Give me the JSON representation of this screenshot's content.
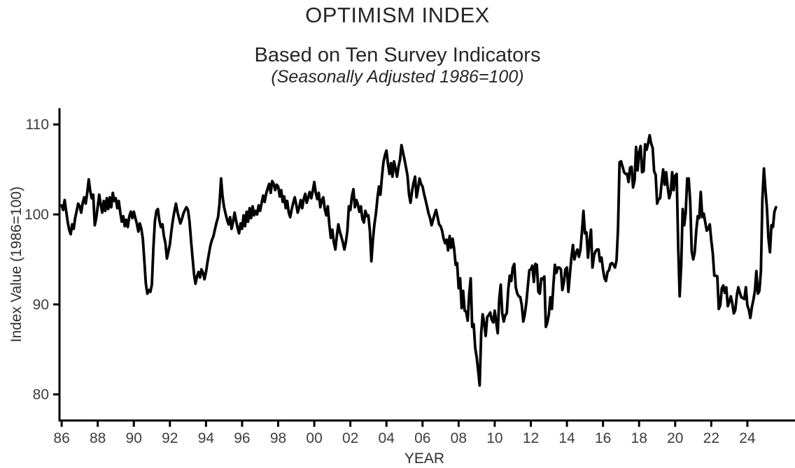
{
  "header": {
    "title": "OPTIMISM INDEX",
    "subtitle": "Based on Ten Survey Indicators",
    "subtitle2": "(Seasonally Adjusted 1986=100)"
  },
  "chart_data": {
    "type": "line",
    "title": "OPTIMISM INDEX",
    "subtitle": "Based on Ten Survey Indicators",
    "subtitle2": "(Seasonally Adjusted 1986=100)",
    "xlabel": "YEAR",
    "ylabel": "Index Value (1986=100)",
    "xlim": [
      1985.88,
      2026.64
    ],
    "ylim": [
      77.1,
      111.8
    ],
    "y_tick_values": [
      80,
      90,
      100,
      110
    ],
    "y_tick_labels": [
      "80",
      "90",
      "100",
      "110"
    ],
    "x_tick_values": [
      1986,
      1988,
      1990,
      1992,
      1994,
      1996,
      1998,
      2000,
      2002,
      2004,
      2006,
      2008,
      2010,
      2012,
      2014,
      2016,
      2018,
      2020,
      2022,
      2024
    ],
    "x_tick_labels": [
      "86",
      "88",
      "90",
      "92",
      "94",
      "96",
      "98",
      "00",
      "02",
      "04",
      "06",
      "08",
      "10",
      "12",
      "14",
      "16",
      "18",
      "20",
      "22",
      "24"
    ],
    "grid": false,
    "legend": "none",
    "line_color": "#000000",
    "axis_color": "#000000",
    "tick_label_color": "#3d3d3d",
    "line_width": 3.8,
    "x_start": 1986.0,
    "points_per_year": 12,
    "series": [
      {
        "name": "Optimism Index",
        "values": [
          101.0,
          100.5,
          101.6,
          100.4,
          99.2,
          98.3,
          97.8,
          98.9,
          98.4,
          99.6,
          100.4,
          101.2,
          100.9,
          100.2,
          101.3,
          101.9,
          101.2,
          102.4,
          103.9,
          102.6,
          101.8,
          102.2,
          98.8,
          99.6,
          100.9,
          102.2,
          101.1,
          100.2,
          101.5,
          100.4,
          101.8,
          100.6,
          101.9,
          100.8,
          102.4,
          101.5,
          101.8,
          100.7,
          101.5,
          100.2,
          99.2,
          99.8,
          98.7,
          99.4,
          98.6,
          99.8,
          100.3,
          99.6,
          100.3,
          99.6,
          99.0,
          98.1,
          99.0,
          98.4,
          97.3,
          94.8,
          92.3,
          91.2,
          91.6,
          91.4,
          92.2,
          96.3,
          99.2,
          100.4,
          100.6,
          99.3,
          98.6,
          98.9,
          97.6,
          96.8,
          95.1,
          95.9,
          96.7,
          98.2,
          99.4,
          100.4,
          101.2,
          100.3,
          99.6,
          99.0,
          99.5,
          100.1,
          100.5,
          100.8,
          100.5,
          99.3,
          97.2,
          95.3,
          93.4,
          92.3,
          93.1,
          93.6,
          93.0,
          93.9,
          93.5,
          92.8,
          93.6,
          94.7,
          95.7,
          96.6,
          97.2,
          97.6,
          98.4,
          99.1,
          99.7,
          101.2,
          104.0,
          102.0,
          100.8,
          100.1,
          99.4,
          98.9,
          99.7,
          98.4,
          99.2,
          100.2,
          99.3,
          98.5,
          97.9,
          99.0,
          98.4,
          99.9,
          98.7,
          100.3,
          99.2,
          100.7,
          99.6,
          100.9,
          99.9,
          100.4,
          100.0,
          101.0,
          100.4,
          101.3,
          102.1,
          101.4,
          102.3,
          102.9,
          103.4,
          102.4,
          103.7,
          103.4,
          102.7,
          103.3,
          103.1,
          102.0,
          102.7,
          101.4,
          102.0,
          100.7,
          101.5,
          100.2,
          99.7,
          100.6,
          101.3,
          101.9,
          101.1,
          100.2,
          100.8,
          101.6,
          100.7,
          101.7,
          102.3,
          101.3,
          101.9,
          102.5,
          101.8,
          102.6,
          103.6,
          102.4,
          101.7,
          102.4,
          100.8,
          101.6,
          101.9,
          100.6,
          99.9,
          100.9,
          98.9,
          97.4,
          98.3,
          96.9,
          96.1,
          97.6,
          98.9,
          98.1,
          97.5,
          96.9,
          96.1,
          96.9,
          98.2,
          100.9,
          100.5,
          102.0,
          102.8,
          100.8,
          101.6,
          101.1,
          100.3,
          100.9,
          99.5,
          99.1,
          100.4,
          99.8,
          99.9,
          98.1,
          94.8,
          97.2,
          98.9,
          100.1,
          101.8,
          103.1,
          102.2,
          104.2,
          105.8,
          106.6,
          107.1,
          105.6,
          104.5,
          105.7,
          104.2,
          105.9,
          105.1,
          104.2,
          105.3,
          106.1,
          107.7,
          106.9,
          106.1,
          105.2,
          104.3,
          102.2,
          101.3,
          102.6,
          103.5,
          104.2,
          101.9,
          102.8,
          104.0,
          103.4,
          103.1,
          102.3,
          101.6,
          100.9,
          100.1,
          99.6,
          98.8,
          99.4,
          100.0,
          100.5,
          99.7,
          98.9,
          98.7,
          98.2,
          97.3,
          96.8,
          97.2,
          96.0,
          97.6,
          96.3,
          97.3,
          96.2,
          94.4,
          94.6,
          91.8,
          92.9,
          89.6,
          91.5,
          89.3,
          89.2,
          88.2,
          91.1,
          92.9,
          87.5,
          87.8,
          85.2,
          84.1,
          82.6,
          81.0,
          86.8,
          88.9,
          87.9,
          86.5,
          88.6,
          88.8,
          89.1,
          88.3,
          88.0,
          89.3,
          88.0,
          86.8,
          90.6,
          92.2,
          89.0,
          88.1,
          88.8,
          89.0,
          91.7,
          93.2,
          92.6,
          94.1,
          94.5,
          91.9,
          91.2,
          90.9,
          90.8,
          89.9,
          88.1,
          88.9,
          90.2,
          92.0,
          93.8,
          93.9,
          94.3,
          92.5,
          94.5,
          94.4,
          91.4,
          91.2,
          92.9,
          92.8,
          93.1,
          87.5,
          88.0,
          88.9,
          90.8,
          89.5,
          92.1,
          94.4,
          93.5,
          94.1,
          94.1,
          93.9,
          91.6,
          92.5,
          93.9,
          94.1,
          91.4,
          93.4,
          95.2,
          96.6,
          95.0,
          95.7,
          96.1,
          95.3,
          96.1,
          98.1,
          100.4,
          97.9,
          98.0,
          95.2,
          96.9,
          98.3,
          94.1,
          95.4,
          95.9,
          96.1,
          96.1,
          94.8,
          95.2,
          93.9,
          92.9,
          92.6,
          93.6,
          93.8,
          94.5,
          94.6,
          94.4,
          94.1,
          94.9,
          98.4,
          105.8,
          105.9,
          105.3,
          104.7,
          104.5,
          104.5,
          103.6,
          105.2,
          105.3,
          103.0,
          103.8,
          107.5,
          104.9,
          106.9,
          107.6,
          104.7,
          104.8,
          107.8,
          107.2,
          107.9,
          108.8,
          107.9,
          107.4,
          104.8,
          104.4,
          101.2,
          101.7,
          101.8,
          103.5,
          105.0,
          103.3,
          104.7,
          103.1,
          101.8,
          102.4,
          104.7,
          102.7,
          104.3,
          104.5,
          96.4,
          90.9,
          94.4,
          100.6,
          98.8,
          100.2,
          104.0,
          104.0,
          101.4,
          95.9,
          95.0,
          95.8,
          98.2,
          99.8,
          99.6,
          102.5,
          99.7,
          100.1,
          99.1,
          98.2,
          98.4,
          98.9,
          97.1,
          95.7,
          93.2,
          93.2,
          93.1,
          89.5,
          89.9,
          91.8,
          92.1,
          91.3,
          91.9,
          89.8,
          90.3,
          90.9,
          90.1,
          89.0,
          89.4,
          91.0,
          91.9,
          91.3,
          90.8,
          90.7,
          90.6,
          91.9,
          89.9,
          89.4,
          88.5,
          89.7,
          90.5,
          91.5,
          93.7,
          91.2,
          91.5,
          93.7,
          101.7,
          105.1,
          102.8,
          100.7,
          97.4,
          95.8,
          98.8,
          98.6,
          100.3,
          100.8
        ]
      }
    ]
  }
}
